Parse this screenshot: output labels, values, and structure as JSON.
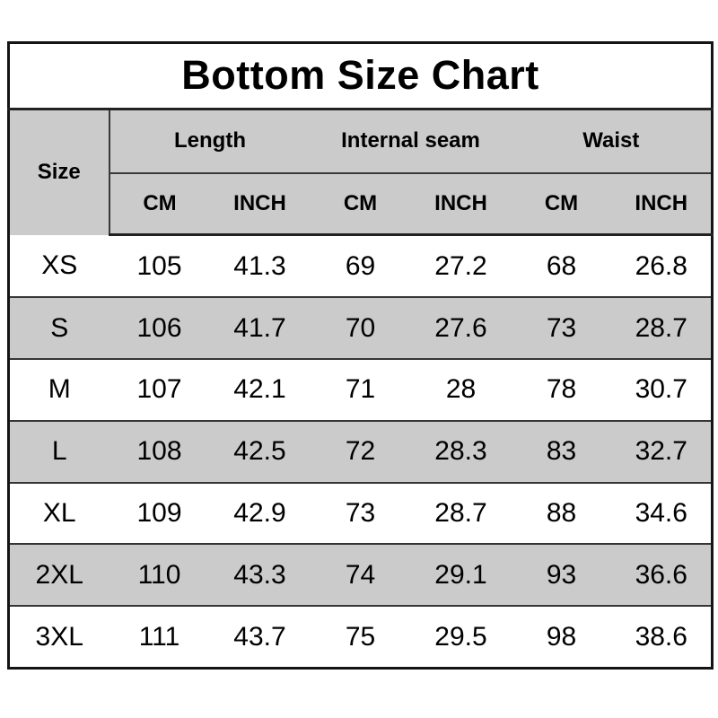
{
  "chart_data": {
    "type": "table",
    "title": "Bottom Size Chart",
    "row_header": "Size",
    "column_groups": [
      {
        "label": "Length"
      },
      {
        "label": "Internal seam"
      },
      {
        "label": "Waist"
      }
    ],
    "unit_headers": [
      "CM",
      "INCH",
      "CM",
      "INCH",
      "CM",
      "INCH"
    ],
    "rows": [
      {
        "size": "XS",
        "values": [
          "105",
          "41.3",
          "69",
          "27.2",
          "68",
          "26.8"
        ]
      },
      {
        "size": "S",
        "values": [
          "106",
          "41.7",
          "70",
          "27.6",
          "73",
          "28.7"
        ]
      },
      {
        "size": "M",
        "values": [
          "107",
          "42.1",
          "71",
          "28",
          "78",
          "30.7"
        ]
      },
      {
        "size": "L",
        "values": [
          "108",
          "42.5",
          "72",
          "28.3",
          "83",
          "32.7"
        ]
      },
      {
        "size": "XL",
        "values": [
          "109",
          "42.9",
          "73",
          "28.7",
          "88",
          "34.6"
        ]
      },
      {
        "size": "2XL",
        "values": [
          "110",
          "43.3",
          "74",
          "29.1",
          "93",
          "36.6"
        ]
      },
      {
        "size": "3XL",
        "values": [
          "111",
          "43.7",
          "75",
          "29.5",
          "98",
          "38.6"
        ]
      }
    ]
  },
  "colors": {
    "header_bg": "#cbcbcb",
    "stripe_bg": "#cbcbcb",
    "row_bg": "#ffffff",
    "outer_border": "#141414",
    "inner_line": "#363636",
    "text": "#000000"
  }
}
